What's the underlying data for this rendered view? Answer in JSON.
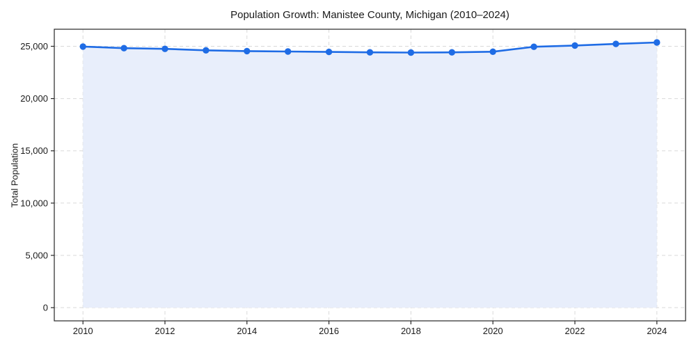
{
  "chart_data": {
    "type": "area",
    "title": "Population Growth: Manistee County, Michigan (2010–2024)",
    "xlabel": "",
    "ylabel": "Total Population",
    "x": [
      2010,
      2011,
      2012,
      2013,
      2014,
      2015,
      2016,
      2017,
      2018,
      2019,
      2020,
      2021,
      2022,
      2023,
      2024
    ],
    "values": [
      24970,
      24820,
      24750,
      24610,
      24540,
      24500,
      24460,
      24420,
      24400,
      24420,
      24480,
      24950,
      25070,
      25220,
      25360
    ],
    "baseline": 0,
    "xticks": {
      "values": [
        2010,
        2012,
        2014,
        2016,
        2018,
        2020,
        2022,
        2024
      ],
      "labels": [
        "2010",
        "2012",
        "2014",
        "2016",
        "2018",
        "2020",
        "2022",
        "2024"
      ]
    },
    "yticks": {
      "values": [
        0,
        5000,
        10000,
        15000,
        20000,
        25000
      ],
      "labels": [
        "0",
        "5,000",
        "10,000",
        "15,000",
        "20,000",
        "25,000"
      ]
    },
    "xlim": [
      2009.3,
      2024.7
    ],
    "ylim": [
      -1268,
      26628
    ],
    "grid": true,
    "grid_style": "dashed",
    "legend": false,
    "colors": {
      "line": "#1f6ce5",
      "marker": "#1f6ce5",
      "fill": "#e8eefb",
      "grid": "#d9d9d9",
      "spine": "#262626",
      "text": "#1a1a1a",
      "background": "#ffffff"
    }
  }
}
